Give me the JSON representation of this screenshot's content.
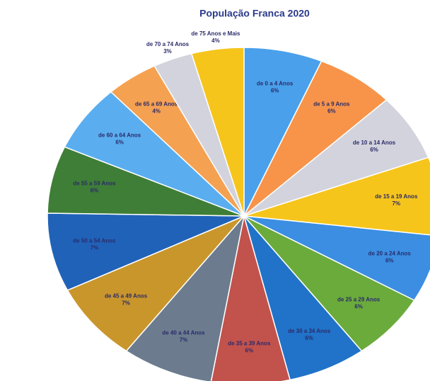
{
  "chart_data": {
    "type": "pie",
    "title": "População Franca 2020",
    "categories": [
      "de 0 a 4 Anos",
      "de 5 a 9 Anos",
      "de 10 a 14 Anos",
      "de 15 a 19 Anos",
      "de 20 a 24 Anos",
      "de 25 a 29 Anos",
      "de 30 a 34 Anos",
      "de 35 a 39 Anos",
      "de 40 a 44 Anos",
      "de 45 a 49 Anos",
      "de 50 a 54 Anos",
      "de 55 a 59 Anos",
      "de 60 a 64 Anos",
      "de 65 a 69 Anos",
      "de 70 a 74 Anos",
      "de 75 Anos e Mais"
    ],
    "values": [
      6,
      6,
      6,
      7,
      6,
      6,
      6,
      6,
      7,
      7,
      7,
      6,
      6,
      4,
      3,
      4
    ],
    "value_labels": [
      "6%",
      "6%",
      "6%",
      "7%",
      "6%",
      "6%",
      "6%",
      "6%",
      "7%",
      "7%",
      "7%",
      "6%",
      "6%",
      "4%",
      "3%",
      "4%"
    ],
    "colors": [
      "#4aa0ea",
      "#f7944a",
      "#d2d3dc",
      "#f6c51c",
      "#3b8ee2",
      "#6bab3c",
      "#2073c8",
      "#c2524c",
      "#6c7c8e",
      "#c9962c",
      "#2062b8",
      "#3f7e36",
      "#5aaef0",
      "#f5a152",
      "#d2d3dc",
      "#f6c51c"
    ]
  }
}
